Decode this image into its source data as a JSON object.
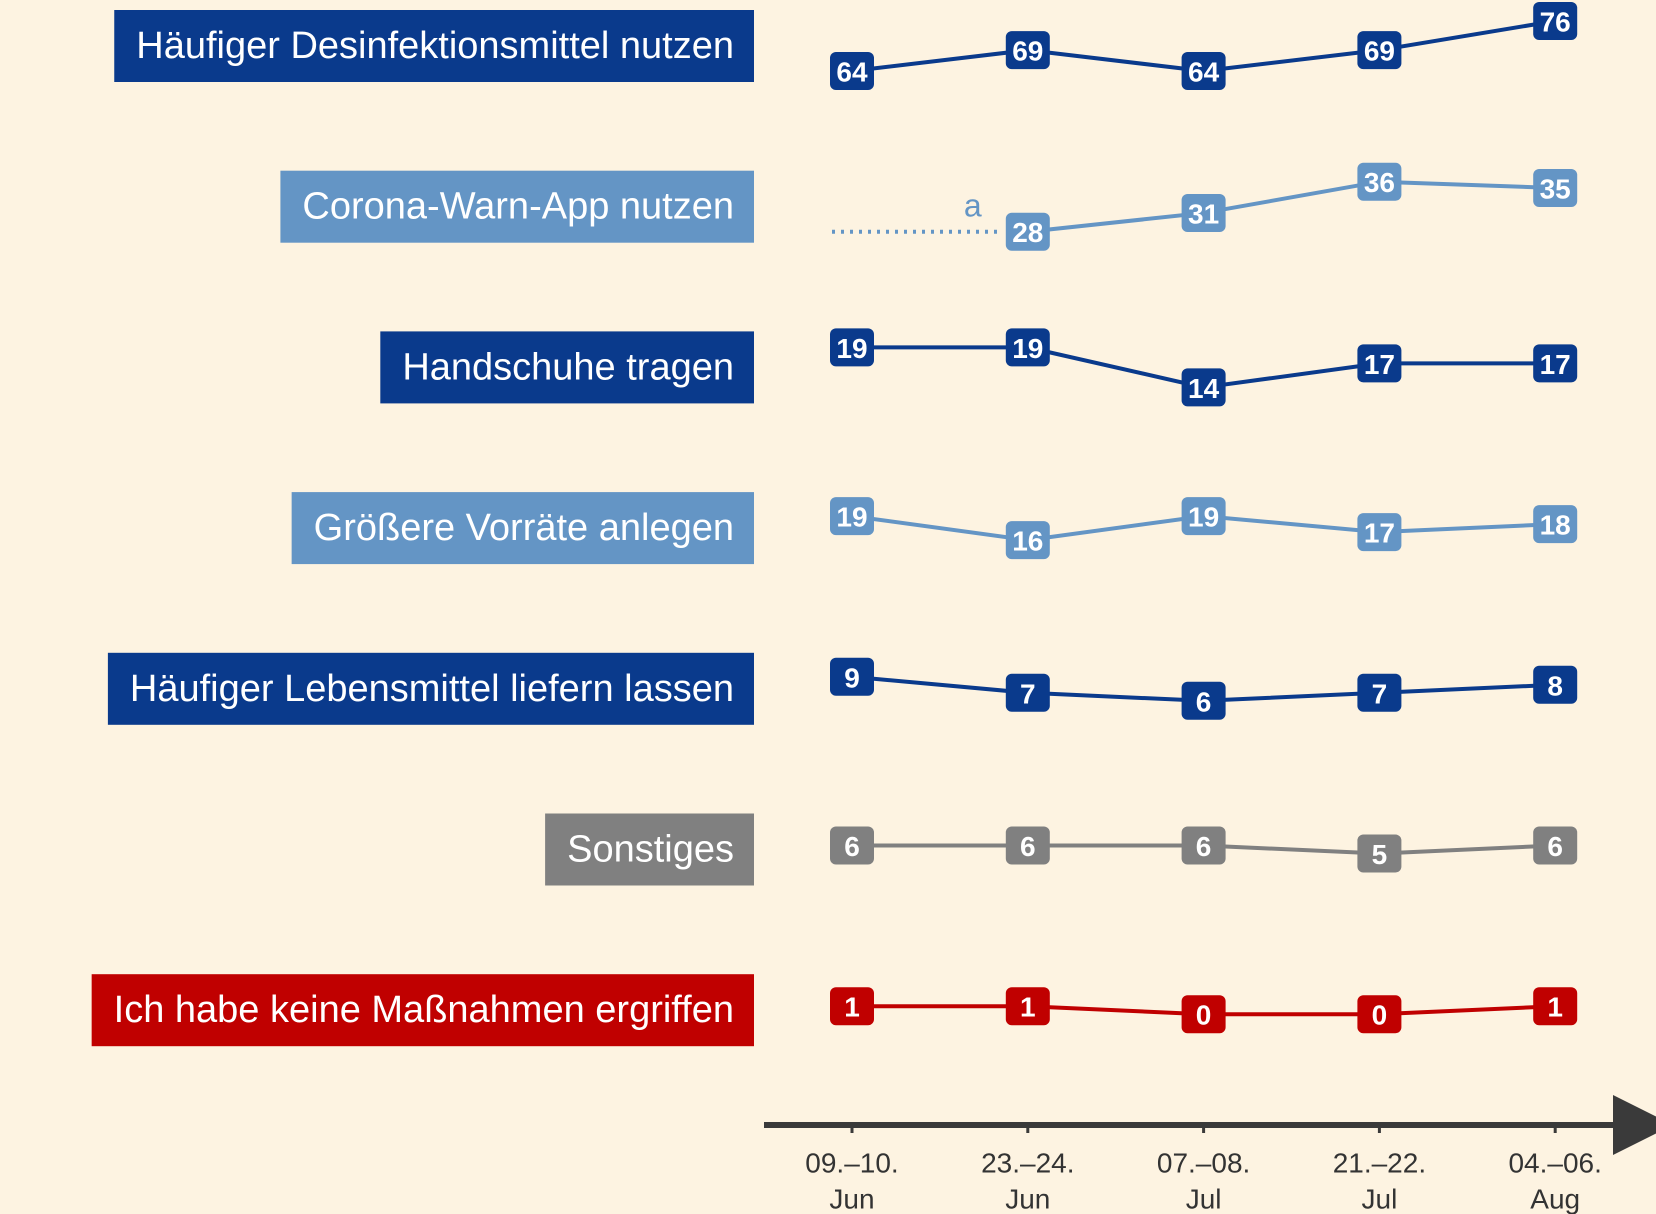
{
  "chart_data": {
    "type": "line",
    "categories": [
      [
        "09.–10.",
        "Jun"
      ],
      [
        "23.–24.",
        "Jun"
      ],
      [
        "07.–08.",
        "Jul"
      ],
      [
        "21.–22.",
        "Jul"
      ],
      [
        "04.–06.",
        "Aug"
      ]
    ],
    "annotation": "a",
    "series": [
      {
        "name": "Häufiger Desinfektionsmittel nutzen",
        "color": "#0a3a8c",
        "values": [
          64,
          69,
          64,
          69,
          76
        ]
      },
      {
        "name": "Corona-Warn-App nutzen",
        "color": "#6495c5",
        "values": [
          null,
          28,
          31,
          36,
          35
        ]
      },
      {
        "name": "Handschuhe tragen",
        "color": "#0a3a8c",
        "values": [
          19,
          19,
          14,
          17,
          17
        ]
      },
      {
        "name": "Größere Vorräte anlegen",
        "color": "#6495c5",
        "values": [
          19,
          16,
          19,
          17,
          18
        ]
      },
      {
        "name": "Häufiger Lebensmittel liefern lassen",
        "color": "#0a3a8c",
        "values": [
          9,
          7,
          6,
          7,
          8
        ]
      },
      {
        "name": "Sonstiges",
        "color": "#808080",
        "values": [
          6,
          6,
          6,
          5,
          6
        ]
      },
      {
        "name": "Ich habe keine Maßnahmen ergriffen",
        "color": "#c00000",
        "values": [
          1,
          1,
          0,
          0,
          1
        ]
      }
    ]
  }
}
